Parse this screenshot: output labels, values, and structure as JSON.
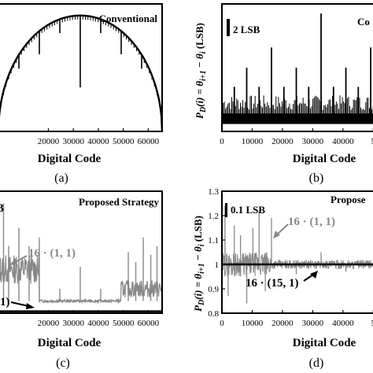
{
  "panels": {
    "a": {
      "caption": "(a)",
      "chart_data": {
        "type": "line",
        "title": "Conventional",
        "xlabel": "Digital Code",
        "ylabel": "",
        "xlim": [
          0,
          65536
        ],
        "xticks": [
          "20000",
          "30000",
          "40000",
          "50000",
          "60000"
        ],
        "xtick_values": [
          20000,
          30000,
          40000,
          50000,
          60000
        ],
        "ylim": [
          0,
          1.1
        ],
        "curve": "semicircle envelope of code angle steps with downward spikes",
        "spikes": [
          {
            "x": 8192,
            "depth": 0.12
          },
          {
            "x": 16384,
            "depth": 0.2
          },
          {
            "x": 24576,
            "depth": 0.12
          },
          {
            "x": 32768,
            "depth": 0.62
          },
          {
            "x": 40960,
            "depth": 0.12
          },
          {
            "x": 49152,
            "depth": 0.2
          },
          {
            "x": 57344,
            "depth": 0.12
          }
        ]
      }
    },
    "b": {
      "caption": "(b)",
      "chart_data": {
        "type": "bar",
        "title": "Co",
        "xlabel": "Digital Code",
        "ylabel": "P_D(i) = θ_{i+1} − θ_i (LSB)",
        "xlim": [
          0,
          52000
        ],
        "xticks": [
          "0",
          "10000",
          "20000",
          "30000",
          "40000",
          "5"
        ],
        "xtick_values": [
          0,
          10000,
          20000,
          30000,
          40000,
          50000
        ],
        "ylim": [
          0,
          12
        ],
        "scale_bar_label": "2 LSB",
        "baseline_band": [
          0.7,
          1.7
        ],
        "peaks": [
          {
            "x": 4096,
            "value": 4.2
          },
          {
            "x": 8192,
            "value": 6
          },
          {
            "x": 12288,
            "value": 4.2
          },
          {
            "x": 16384,
            "value": 7.9
          },
          {
            "x": 20480,
            "value": 4.2
          },
          {
            "x": 24576,
            "value": 6
          },
          {
            "x": 28672,
            "value": 4.2
          },
          {
            "x": 32768,
            "value": 11.1
          },
          {
            "x": 36864,
            "value": 4.2
          },
          {
            "x": 40960,
            "value": 6
          },
          {
            "x": 45056,
            "value": 4.2
          },
          {
            "x": 49152,
            "value": 7.9
          }
        ]
      }
    },
    "c": {
      "caption": "(c)",
      "chart_data": {
        "type": "line",
        "title": "Proposed Strategy",
        "xlabel": "Digital Code",
        "ylabel": "",
        "xlim": [
          0,
          65536
        ],
        "xticks": [
          "20000",
          "30000",
          "40000",
          "50000",
          "60000"
        ],
        "xtick_values": [
          20000,
          30000,
          40000,
          50000,
          60000
        ],
        "series": [
          {
            "name": "16 · (1, 1)",
            "color": "#888888"
          },
          {
            "name": "1)",
            "color": "#000000"
          }
        ],
        "corner_fragment": "B"
      }
    },
    "d": {
      "caption": "(d)",
      "chart_data": {
        "type": "line",
        "title": "Propose",
        "xlabel": "Digital Code",
        "ylabel": "P_D(i) = θ_{i+1} − θ_i (LSB)",
        "xlim": [
          0,
          52000
        ],
        "xticks": [
          "0",
          "10000",
          "20000",
          "30000",
          "40000",
          "5"
        ],
        "xtick_values": [
          0,
          10000,
          20000,
          30000,
          40000,
          50000
        ],
        "ylim": [
          0.8,
          1.3
        ],
        "yticks": [
          "0.8",
          "0.9",
          "1",
          "1.1",
          "1.2",
          "1.3"
        ],
        "ytick_values": [
          0.8,
          0.9,
          1.0,
          1.1,
          1.2,
          1.3
        ],
        "scale_bar_label": "0.1 LSB",
        "series": [
          {
            "name": "16 · (1, 1)",
            "color": "#888888"
          },
          {
            "name": "16 · (15, 1)",
            "color": "#000000"
          }
        ]
      }
    }
  }
}
